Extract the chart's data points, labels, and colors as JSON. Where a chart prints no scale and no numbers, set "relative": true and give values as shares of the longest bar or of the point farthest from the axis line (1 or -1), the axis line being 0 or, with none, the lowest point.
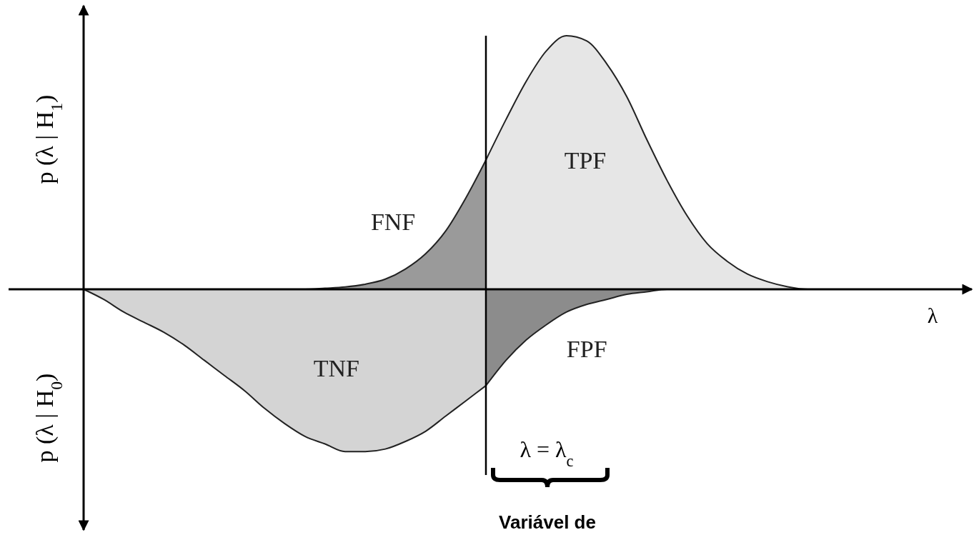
{
  "chart_data": {
    "type": "area",
    "relative": true,
    "xlabel": "λ",
    "ylabel": "p (λ | H$_{1}$)",
    "categories": [
      null,
      null,
      null,
      null,
      null,
      null,
      null,
      null,
      null,
      null,
      null,
      null,
      null,
      null,
      null,
      null,
      null,
      null,
      null,
      null,
      null,
      null,
      null,
      null,
      null,
      null,
      null,
      null,
      null,
      null,
      null,
      null,
      null,
      null,
      null,
      null,
      null,
      null,
      null,
      null,
      null,
      null,
      null,
      null,
      null
    ],
    "series": [
      {
        "name": "FNF",
        "color": "#9a9a9a",
        "values": [
          0,
          0,
          0,
          0,
          0,
          0,
          0,
          0,
          0,
          0,
          0,
          0,
          0.004,
          0.009,
          0.02,
          0.04,
          0.08,
          0.14,
          0.23,
          0.36,
          0.51,
          null,
          null,
          null,
          null,
          null,
          null,
          null,
          null,
          null,
          null,
          null,
          null,
          null,
          null,
          null,
          null,
          null,
          null,
          null,
          null,
          null,
          null,
          null,
          null
        ]
      },
      {
        "name": "TPF",
        "color": "#e6e6e6",
        "values": [
          null,
          null,
          null,
          null,
          null,
          null,
          null,
          null,
          null,
          null,
          null,
          null,
          null,
          null,
          null,
          null,
          null,
          null,
          null,
          null,
          0.51,
          0.67,
          0.82,
          0.94,
          1,
          0.98,
          0.89,
          0.76,
          0.59,
          0.43,
          0.29,
          0.18,
          0.11,
          0.06,
          0.03,
          0.01,
          0,
          0,
          0,
          0,
          0,
          0,
          0,
          0,
          0
        ]
      },
      {
        "name": "TNF",
        "color": "#d4d4d4",
        "values": [
          0,
          -0.04,
          -0.09,
          -0.13,
          -0.17,
          -0.22,
          -0.28,
          -0.34,
          -0.4,
          -0.47,
          -0.53,
          -0.58,
          -0.61,
          -0.64,
          -0.64,
          -0.63,
          -0.6,
          -0.56,
          -0.5,
          -0.44,
          -0.38,
          null,
          null,
          null,
          null,
          null,
          null,
          null,
          null,
          null,
          null,
          null,
          null,
          null,
          null,
          null,
          null,
          null,
          null,
          null,
          null,
          null,
          null,
          null,
          null
        ]
      },
      {
        "name": "FPF",
        "color": "#8c8c8c",
        "values": [
          null,
          null,
          null,
          null,
          null,
          null,
          null,
          null,
          null,
          null,
          null,
          null,
          null,
          null,
          null,
          null,
          null,
          null,
          null,
          null,
          -0.38,
          -0.28,
          -0.2,
          -0.14,
          -0.09,
          -0.06,
          -0.04,
          -0.02,
          -0.01,
          0,
          0,
          0,
          0,
          0,
          0,
          0,
          0,
          0,
          0,
          0,
          0,
          0,
          0,
          0,
          0
        ]
      }
    ],
    "annotations": [
      "p (λ | H$_{0}$)",
      "Variável de",
      "λ = λ$_{c}$"
    ]
  }
}
